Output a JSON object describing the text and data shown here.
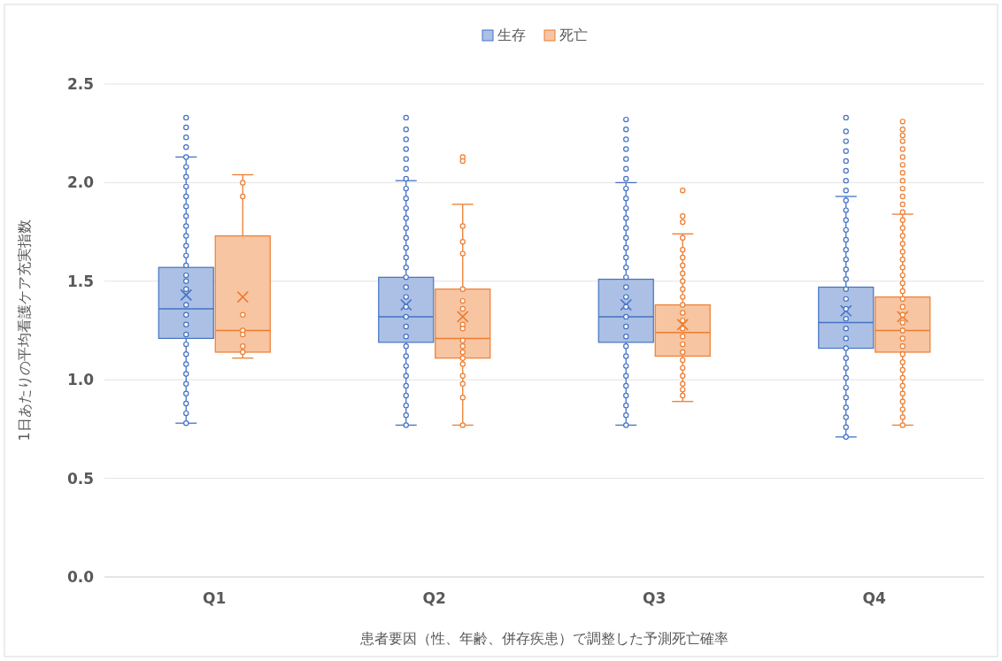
{
  "chart_data": {
    "type": "box",
    "xlabel": "患者要因（性、年齢、併存疾患）で調整した予測死亡確率",
    "ylabel": "1日あたりの平均看護ケア充実指数",
    "categories": [
      "Q1",
      "Q2",
      "Q3",
      "Q4"
    ],
    "ylim": [
      0,
      2.5
    ],
    "yticks": [
      {
        "value": 0,
        "label": "0.0"
      },
      {
        "value": 0.5,
        "label": "0.5"
      },
      {
        "value": 1,
        "label": "1.0"
      },
      {
        "value": 1.5,
        "label": "1.5"
      },
      {
        "value": 2,
        "label": "2.0"
      },
      {
        "value": 2.5,
        "label": "2.5"
      }
    ],
    "grid": "y",
    "legend": "top",
    "marker": "circle",
    "series": [
      {
        "name": "生存",
        "color": "#4472c4",
        "boxes": [
          {
            "low": 0.78,
            "q1": 1.21,
            "median": 1.36,
            "q3": 1.57,
            "high": 2.13,
            "mean": 1.43,
            "outliers": [
              0.78,
              0.83,
              0.88,
              0.93,
              0.98,
              1.03,
              1.08,
              1.13,
              1.18,
              1.23,
              1.28,
              1.33,
              1.38,
              1.46,
              1.5,
              1.53,
              1.58,
              1.63,
              1.68,
              1.73,
              1.78,
              1.83,
              1.88,
              1.93,
              1.98,
              2.03,
              2.08,
              2.13,
              2.18,
              2.23,
              2.28,
              2.33
            ]
          },
          {
            "low": 0.77,
            "q1": 1.19,
            "median": 1.32,
            "q3": 1.52,
            "high": 2.01,
            "mean": 1.38,
            "outliers": [
              0.77,
              0.82,
              0.87,
              0.92,
              0.97,
              1.02,
              1.07,
              1.12,
              1.17,
              1.22,
              1.27,
              1.32,
              1.37,
              1.42,
              1.47,
              1.52,
              1.57,
              1.62,
              1.67,
              1.72,
              1.77,
              1.82,
              1.87,
              1.92,
              1.97,
              2.02,
              2.07,
              2.12,
              2.17,
              2.22,
              2.27,
              2.33
            ]
          },
          {
            "low": 0.77,
            "q1": 1.19,
            "median": 1.32,
            "q3": 1.51,
            "high": 2.0,
            "mean": 1.38,
            "outliers": [
              0.77,
              0.82,
              0.87,
              0.92,
              0.97,
              1.02,
              1.07,
              1.12,
              1.17,
              1.22,
              1.27,
              1.32,
              1.37,
              1.42,
              1.47,
              1.52,
              1.57,
              1.62,
              1.67,
              1.72,
              1.77,
              1.82,
              1.87,
              1.92,
              1.97,
              2.02,
              2.07,
              2.12,
              2.17,
              2.22,
              2.27,
              2.32
            ]
          },
          {
            "low": 0.71,
            "q1": 1.16,
            "median": 1.29,
            "q3": 1.47,
            "high": 1.93,
            "mean": 1.35,
            "outliers": [
              0.71,
              0.76,
              0.81,
              0.86,
              0.91,
              0.96,
              1.01,
              1.06,
              1.11,
              1.16,
              1.21,
              1.26,
              1.31,
              1.36,
              1.41,
              1.46,
              1.51,
              1.56,
              1.61,
              1.66,
              1.71,
              1.76,
              1.81,
              1.86,
              1.91,
              1.96,
              2.01,
              2.06,
              2.11,
              2.16,
              2.21,
              2.26,
              2.33
            ]
          }
        ]
      },
      {
        "name": "死亡",
        "color": "#ed7d31",
        "boxes": [
          {
            "low": 1.11,
            "q1": 1.14,
            "median": 1.25,
            "q3": 1.73,
            "high": 2.04,
            "mean": 1.42,
            "outliers": [
              2.0,
              1.93,
              1.33,
              1.25,
              1.23,
              1.17,
              1.14
            ]
          },
          {
            "low": 0.77,
            "q1": 1.11,
            "median": 1.21,
            "q3": 1.46,
            "high": 1.89,
            "mean": 1.32,
            "outliers": [
              2.13,
              2.11,
              1.78,
              1.7,
              1.64,
              1.46,
              1.4,
              1.36,
              1.28,
              1.26,
              1.2,
              1.17,
              1.14,
              1.11,
              1.08,
              1.02,
              0.98,
              0.91,
              0.77
            ]
          },
          {
            "low": 0.89,
            "q1": 1.12,
            "median": 1.24,
            "q3": 1.38,
            "high": 1.74,
            "mean": 1.28,
            "outliers": [
              1.96,
              1.83,
              1.8,
              1.72,
              1.66,
              1.62,
              1.58,
              1.54,
              1.5,
              1.46,
              1.42,
              1.38,
              1.34,
              1.3,
              1.26,
              1.22,
              1.18,
              1.14,
              1.1,
              1.06,
              1.02,
              0.98,
              0.95,
              0.92
            ]
          },
          {
            "low": 0.77,
            "q1": 1.14,
            "median": 1.25,
            "q3": 1.42,
            "high": 1.84,
            "mean": 1.32,
            "outliers": [
              2.31,
              2.27,
              2.24,
              2.21,
              2.17,
              2.13,
              2.09,
              2.05,
              2.01,
              1.97,
              1.93,
              1.89,
              1.85,
              1.81,
              1.77,
              1.73,
              1.69,
              1.65,
              1.61,
              1.57,
              1.53,
              1.49,
              1.45,
              1.41,
              1.37,
              1.33,
              1.29,
              1.25,
              1.21,
              1.17,
              1.13,
              1.09,
              1.05,
              1.01,
              0.97,
              0.93,
              0.89,
              0.85,
              0.81,
              0.77
            ]
          }
        ]
      }
    ]
  }
}
